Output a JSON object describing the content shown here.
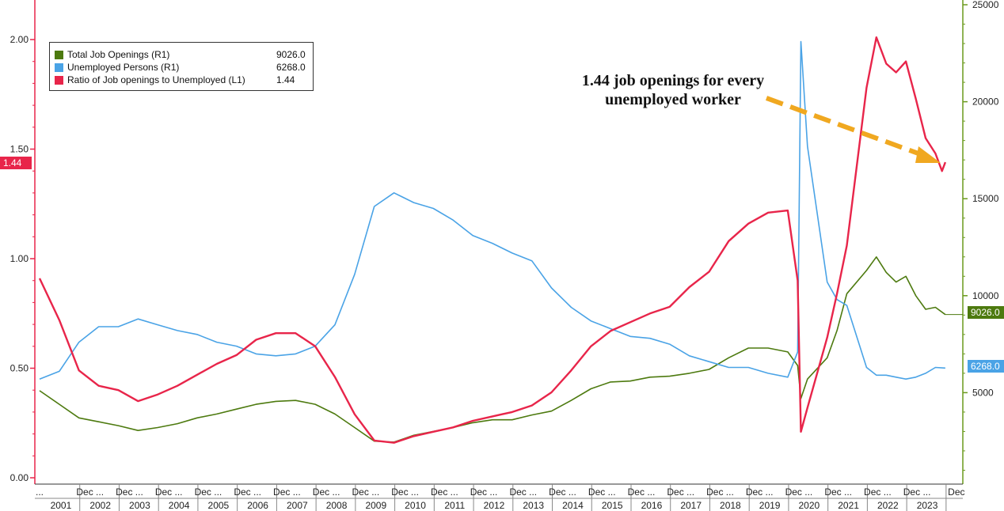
{
  "chart_data": {
    "type": "line",
    "left_axis": {
      "ticks": [
        "0.00",
        "0.50",
        "1.00",
        "1.50",
        "2.00"
      ],
      "range": [
        0,
        2.1
      ]
    },
    "right_axis": {
      "ticks": [
        "5000",
        "10000",
        "15000",
        "20000",
        "25000"
      ],
      "range": [
        0,
        25000
      ]
    },
    "x_start": "2000-12",
    "x_end": "2024-01",
    "x_year_labels": [
      "2001",
      "2002",
      "2003",
      "2004",
      "2005",
      "2006",
      "2007",
      "2008",
      "2009",
      "2010",
      "2011",
      "2012",
      "2013",
      "2014",
      "2015",
      "2016",
      "2017",
      "2018",
      "2019",
      "2020",
      "2021",
      "2022",
      "2023"
    ],
    "x_month_labels": [
      "...",
      "Dec ...",
      "Dec ...",
      "Dec ...",
      "Dec ...",
      "Dec ...",
      "Dec ...",
      "Dec ...",
      "Dec ...",
      "Dec ...",
      "Dec ...",
      "Dec ...",
      "Dec ...",
      "Dec ...",
      "Dec ...",
      "Dec ...",
      "Dec ...",
      "Dec ...",
      "Dec ...",
      "Dec ...",
      "Dec ...",
      "Dec ...",
      "Dec ...",
      "Dec"
    ],
    "series": [
      {
        "name": "Total Job Openings (R1)",
        "axis": "right",
        "color": "#4d7a0f",
        "last": "9026.0",
        "points": [
          [
            "2000-12",
            5100
          ],
          [
            "2001-06",
            4400
          ],
          [
            "2001-12",
            3700
          ],
          [
            "2002-06",
            3500
          ],
          [
            "2002-12",
            3300
          ],
          [
            "2003-06",
            3050
          ],
          [
            "2003-12",
            3200
          ],
          [
            "2004-06",
            3400
          ],
          [
            "2004-12",
            3700
          ],
          [
            "2005-06",
            3900
          ],
          [
            "2005-12",
            4150
          ],
          [
            "2006-06",
            4400
          ],
          [
            "2006-12",
            4550
          ],
          [
            "2007-06",
            4600
          ],
          [
            "2007-12",
            4400
          ],
          [
            "2008-06",
            3900
          ],
          [
            "2008-12",
            3200
          ],
          [
            "2009-06",
            2500
          ],
          [
            "2009-12",
            2450
          ],
          [
            "2010-06",
            2800
          ],
          [
            "2010-12",
            3000
          ],
          [
            "2011-06",
            3200
          ],
          [
            "2011-12",
            3450
          ],
          [
            "2012-06",
            3600
          ],
          [
            "2012-12",
            3600
          ],
          [
            "2013-06",
            3850
          ],
          [
            "2013-12",
            4050
          ],
          [
            "2014-06",
            4600
          ],
          [
            "2014-12",
            5200
          ],
          [
            "2015-06",
            5550
          ],
          [
            "2015-12",
            5600
          ],
          [
            "2016-06",
            5800
          ],
          [
            "2016-12",
            5850
          ],
          [
            "2017-06",
            6000
          ],
          [
            "2017-12",
            6200
          ],
          [
            "2018-06",
            6800
          ],
          [
            "2018-12",
            7300
          ],
          [
            "2019-06",
            7300
          ],
          [
            "2019-12",
            7100
          ],
          [
            "2020-03",
            6400
          ],
          [
            "2020-04",
            4700
          ],
          [
            "2020-06",
            5700
          ],
          [
            "2020-12",
            6800
          ],
          [
            "2021-03",
            8200
          ],
          [
            "2021-06",
            10100
          ],
          [
            "2021-12",
            11300
          ],
          [
            "2022-03",
            12000
          ],
          [
            "2022-06",
            11200
          ],
          [
            "2022-09",
            10700
          ],
          [
            "2022-12",
            11000
          ],
          [
            "2023-03",
            10000
          ],
          [
            "2023-06",
            9300
          ],
          [
            "2023-09",
            9400
          ],
          [
            "2023-12",
            9026
          ]
        ]
      },
      {
        "name": "Unemployed Persons (R1)",
        "axis": "right",
        "color": "#4aa3e6",
        "last": "6268.0",
        "points": [
          [
            "2000-12",
            5700
          ],
          [
            "2001-06",
            6100
          ],
          [
            "2001-12",
            7600
          ],
          [
            "2002-06",
            8400
          ],
          [
            "2002-12",
            8400
          ],
          [
            "2003-06",
            8800
          ],
          [
            "2003-12",
            8500
          ],
          [
            "2004-06",
            8200
          ],
          [
            "2004-12",
            8000
          ],
          [
            "2005-06",
            7600
          ],
          [
            "2005-12",
            7400
          ],
          [
            "2006-06",
            7000
          ],
          [
            "2006-12",
            6900
          ],
          [
            "2007-06",
            7000
          ],
          [
            "2007-12",
            7400
          ],
          [
            "2008-06",
            8500
          ],
          [
            "2008-12",
            11100
          ],
          [
            "2009-06",
            14600
          ],
          [
            "2009-12",
            15300
          ],
          [
            "2010-06",
            14800
          ],
          [
            "2010-12",
            14500
          ],
          [
            "2011-06",
            13900
          ],
          [
            "2011-12",
            13100
          ],
          [
            "2012-06",
            12700
          ],
          [
            "2012-12",
            12200
          ],
          [
            "2013-06",
            11800
          ],
          [
            "2013-12",
            10400
          ],
          [
            "2014-06",
            9400
          ],
          [
            "2014-12",
            8700
          ],
          [
            "2015-06",
            8300
          ],
          [
            "2015-12",
            7900
          ],
          [
            "2016-06",
            7800
          ],
          [
            "2016-12",
            7500
          ],
          [
            "2017-06",
            6900
          ],
          [
            "2017-12",
            6600
          ],
          [
            "2018-06",
            6300
          ],
          [
            "2018-12",
            6300
          ],
          [
            "2019-06",
            6000
          ],
          [
            "2019-12",
            5800
          ],
          [
            "2020-03",
            7100
          ],
          [
            "2020-04",
            23100
          ],
          [
            "2020-06",
            17700
          ],
          [
            "2020-12",
            10700
          ],
          [
            "2021-03",
            9800
          ],
          [
            "2021-06",
            9500
          ],
          [
            "2021-12",
            6300
          ],
          [
            "2022-03",
            5900
          ],
          [
            "2022-06",
            5900
          ],
          [
            "2022-09",
            5800
          ],
          [
            "2022-12",
            5700
          ],
          [
            "2023-03",
            5800
          ],
          [
            "2023-06",
            6000
          ],
          [
            "2023-09",
            6300
          ],
          [
            "2023-12",
            6268
          ]
        ]
      },
      {
        "name": "Ratio of Job openings to Unemployed (L1)",
        "axis": "left",
        "color": "#e8254a",
        "last": "1.44",
        "points": [
          [
            "2000-12",
            0.91
          ],
          [
            "2001-06",
            0.72
          ],
          [
            "2001-12",
            0.49
          ],
          [
            "2002-06",
            0.42
          ],
          [
            "2002-12",
            0.4
          ],
          [
            "2003-06",
            0.35
          ],
          [
            "2003-12",
            0.38
          ],
          [
            "2004-06",
            0.42
          ],
          [
            "2004-12",
            0.47
          ],
          [
            "2005-06",
            0.52
          ],
          [
            "2005-12",
            0.56
          ],
          [
            "2006-06",
            0.63
          ],
          [
            "2006-12",
            0.66
          ],
          [
            "2007-06",
            0.66
          ],
          [
            "2007-12",
            0.6
          ],
          [
            "2008-06",
            0.46
          ],
          [
            "2008-12",
            0.29
          ],
          [
            "2009-06",
            0.17
          ],
          [
            "2009-12",
            0.16
          ],
          [
            "2010-06",
            0.19
          ],
          [
            "2010-12",
            0.21
          ],
          [
            "2011-06",
            0.23
          ],
          [
            "2011-12",
            0.26
          ],
          [
            "2012-06",
            0.28
          ],
          [
            "2012-12",
            0.3
          ],
          [
            "2013-06",
            0.33
          ],
          [
            "2013-12",
            0.39
          ],
          [
            "2014-06",
            0.49
          ],
          [
            "2014-12",
            0.6
          ],
          [
            "2015-06",
            0.67
          ],
          [
            "2015-12",
            0.71
          ],
          [
            "2016-06",
            0.75
          ],
          [
            "2016-12",
            0.78
          ],
          [
            "2017-06",
            0.87
          ],
          [
            "2017-12",
            0.94
          ],
          [
            "2018-06",
            1.08
          ],
          [
            "2018-12",
            1.16
          ],
          [
            "2019-06",
            1.21
          ],
          [
            "2019-12",
            1.22
          ],
          [
            "2020-03",
            0.9
          ],
          [
            "2020-04",
            0.21
          ],
          [
            "2020-06",
            0.32
          ],
          [
            "2020-12",
            0.64
          ],
          [
            "2021-03",
            0.84
          ],
          [
            "2021-06",
            1.06
          ],
          [
            "2021-12",
            1.78
          ],
          [
            "2022-03",
            2.01
          ],
          [
            "2022-06",
            1.89
          ],
          [
            "2022-09",
            1.85
          ],
          [
            "2022-12",
            1.9
          ],
          [
            "2023-03",
            1.73
          ],
          [
            "2023-06",
            1.55
          ],
          [
            "2023-09",
            1.48
          ],
          [
            "2023-11",
            1.4
          ],
          [
            "2023-12",
            1.44
          ]
        ]
      }
    ]
  },
  "annotation": {
    "line1": "1.44 job openings for every",
    "line2": "unemployed worker"
  },
  "colors": {
    "left_axis": "#e8254a",
    "right_axis": "#6a9a1c",
    "arrow": "#f0a820"
  }
}
